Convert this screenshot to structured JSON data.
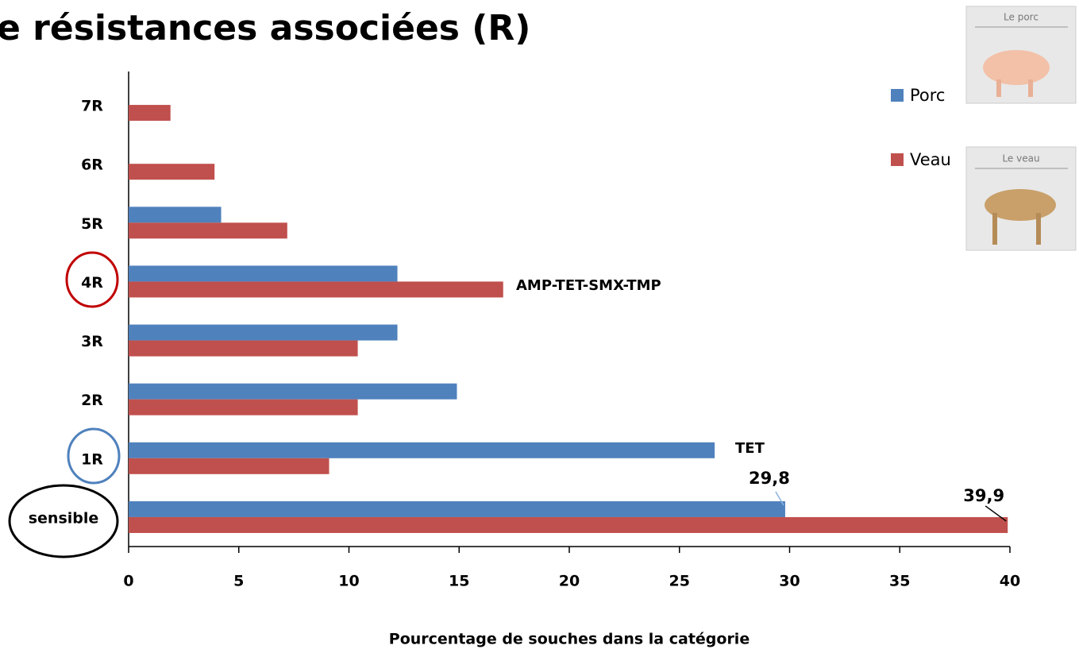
{
  "chart_data": {
    "type": "hbar",
    "title": "e résistances associées (R)",
    "x_label": "Pourcentage de souches dans la catégorie",
    "categories": [
      "sensible",
      "1R",
      "2R",
      "3R",
      "4R",
      "5R",
      "6R",
      "7R"
    ],
    "series": [
      {
        "name": "Porc",
        "color": "#4f81bd",
        "values": [
          29.8,
          26.6,
          14.9,
          12.2,
          12.2,
          4.2,
          null,
          null
        ],
        "value_labels": [
          "29,8",
          null,
          null,
          null,
          null,
          null,
          null,
          null
        ]
      },
      {
        "name": "Veau",
        "color": "#c0504d",
        "values": [
          39.9,
          9.1,
          10.4,
          10.4,
          17.0,
          7.2,
          3.9,
          1.9
        ],
        "value_labels": [
          "39,9",
          null,
          null,
          null,
          null,
          null,
          null,
          null
        ]
      }
    ],
    "annotations": [
      "AMP-TET-SMX-TMP",
      "TET"
    ],
    "xlim": [
      0,
      40
    ],
    "xticks": [
      0,
      5,
      10,
      15,
      20,
      25,
      30,
      35,
      40
    ],
    "legend": "right",
    "images": [
      "Le porc",
      "Le veau"
    ]
  }
}
